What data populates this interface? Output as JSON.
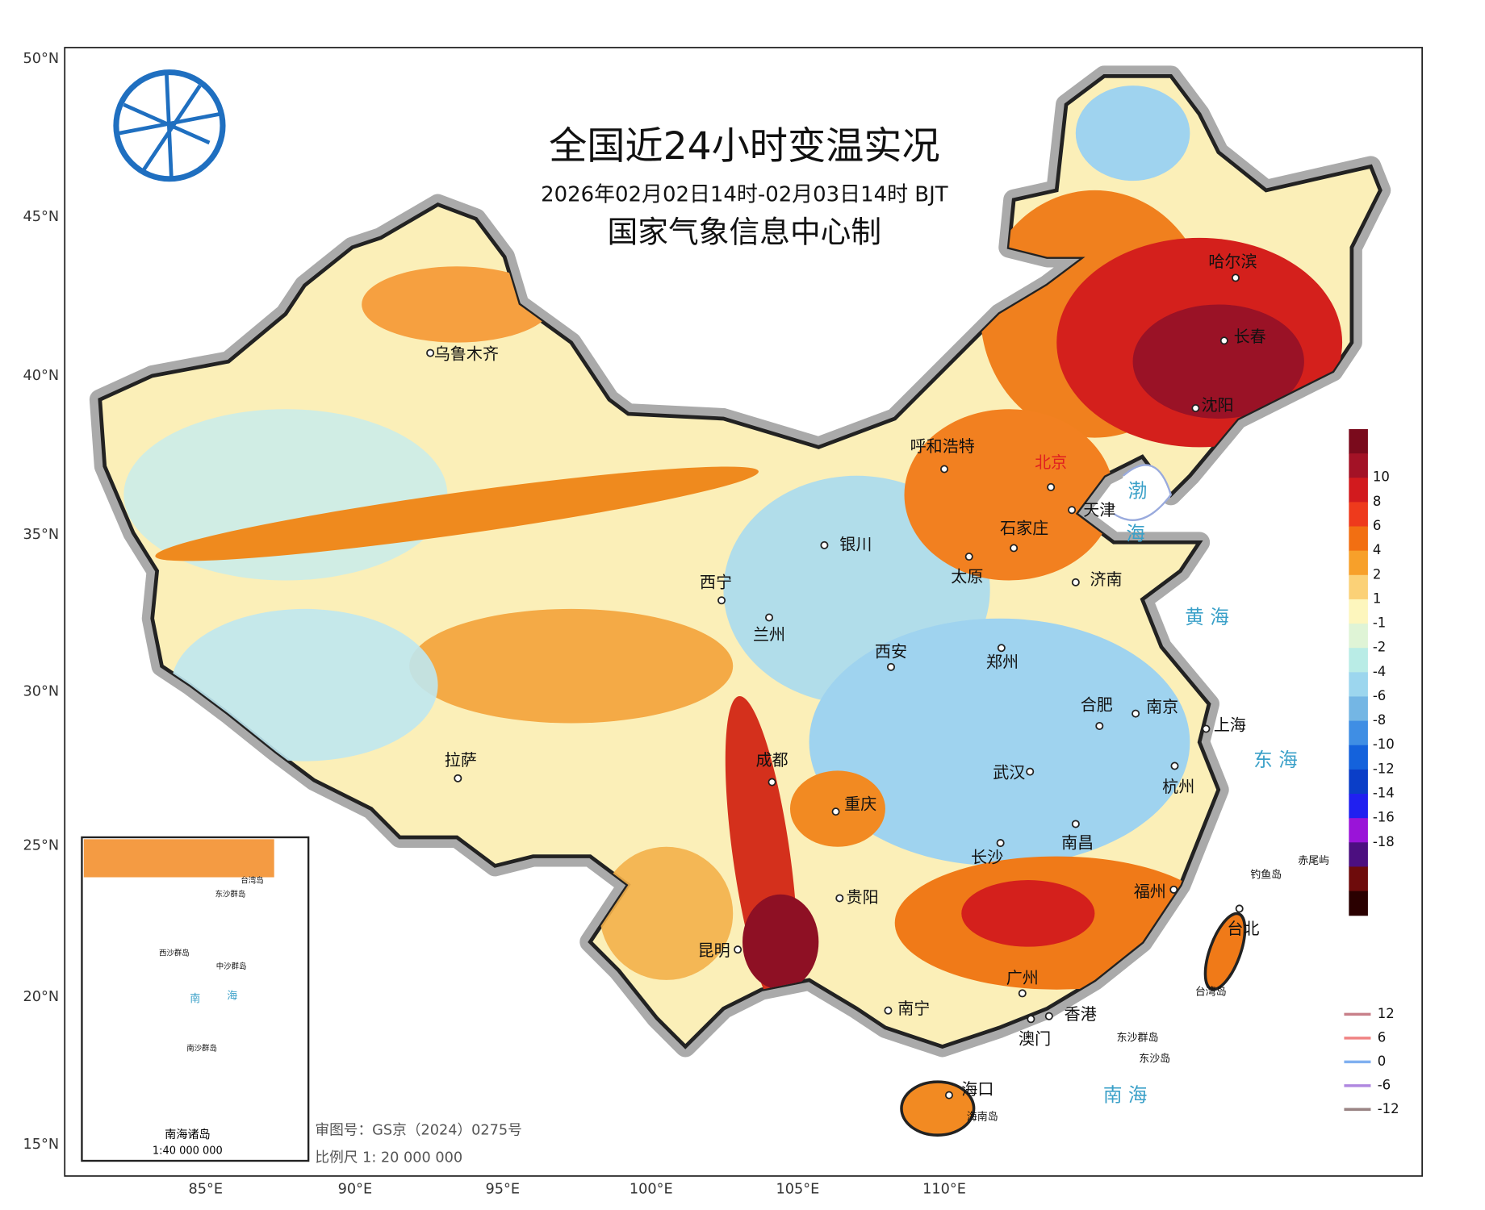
{
  "title": "全国近24小时变温实况",
  "subtitle": "2026年02月02日14时-02月03日14时 BJT",
  "producer": "国家气象信息中心制",
  "latitude_labels": [
    "50°N",
    "45°N",
    "40°N",
    "35°N",
    "30°N",
    "25°N",
    "20°N",
    "15°N"
  ],
  "longitude_labels": [
    "85°E",
    "90°E",
    "95°E",
    "100°E",
    "105°E",
    "110°E"
  ],
  "cities": [
    "乌鲁木齐",
    "哈尔滨",
    "长春",
    "沈阳",
    "呼和浩特",
    "北京",
    "天津",
    "石家庄",
    "银川",
    "济南",
    "太原",
    "西宁",
    "兰州",
    "西安",
    "郑州",
    "合肥",
    "南京",
    "上海",
    "拉萨",
    "成都",
    "武汉",
    "杭州",
    "重庆",
    "南昌",
    "长沙",
    "福州",
    "贵阳",
    "昆明",
    "台北",
    "广州",
    "南宁",
    "香港",
    "澳门",
    "海口"
  ],
  "seas": [
    "渤",
    "海",
    "黄 海",
    "东 海",
    "南 海"
  ],
  "islands": [
    "钓鱼岛",
    "赤尾屿",
    "台湾岛",
    "东沙群岛",
    "东沙岛",
    "海南岛"
  ],
  "colorbar": {
    "labels": [
      10,
      8,
      6,
      4,
      2,
      1,
      -1,
      -2,
      -4,
      -6,
      -8,
      -10,
      -12,
      -14,
      -16,
      -18
    ],
    "colors": [
      "#7a0a1c",
      "#a31226",
      "#d21a1e",
      "#ee3a1c",
      "#f26f12",
      "#f7a02a",
      "#fbd177",
      "#fdf6bd",
      "#dff4d6",
      "#b9ece6",
      "#9cd6ee",
      "#74b6e4",
      "#3f8ee4",
      "#1462dc",
      "#0a3ec8",
      "#2020f0",
      "#9a14d8",
      "#4c0f80",
      "#6e0b0b",
      "#2a0000"
    ]
  },
  "contour_legend": [
    {
      "value": 12,
      "color": "#c8808a"
    },
    {
      "value": 6,
      "color": "#f08484"
    },
    {
      "value": 0,
      "color": "#80b0f0"
    },
    {
      "value": -6,
      "color": "#b088e0"
    },
    {
      "value": -12,
      "color": "#9a8484"
    }
  ],
  "inset": {
    "title": "南海诸岛",
    "scale": "1:40 000 000",
    "labels": [
      "东沙群岛",
      "台湾岛",
      "西沙群岛",
      "中沙群岛",
      "南沙群岛",
      "南",
      "海"
    ]
  },
  "approval": "审图号：GS京（2024）0275号",
  "scale": "比例尺 1: 20 000 000"
}
